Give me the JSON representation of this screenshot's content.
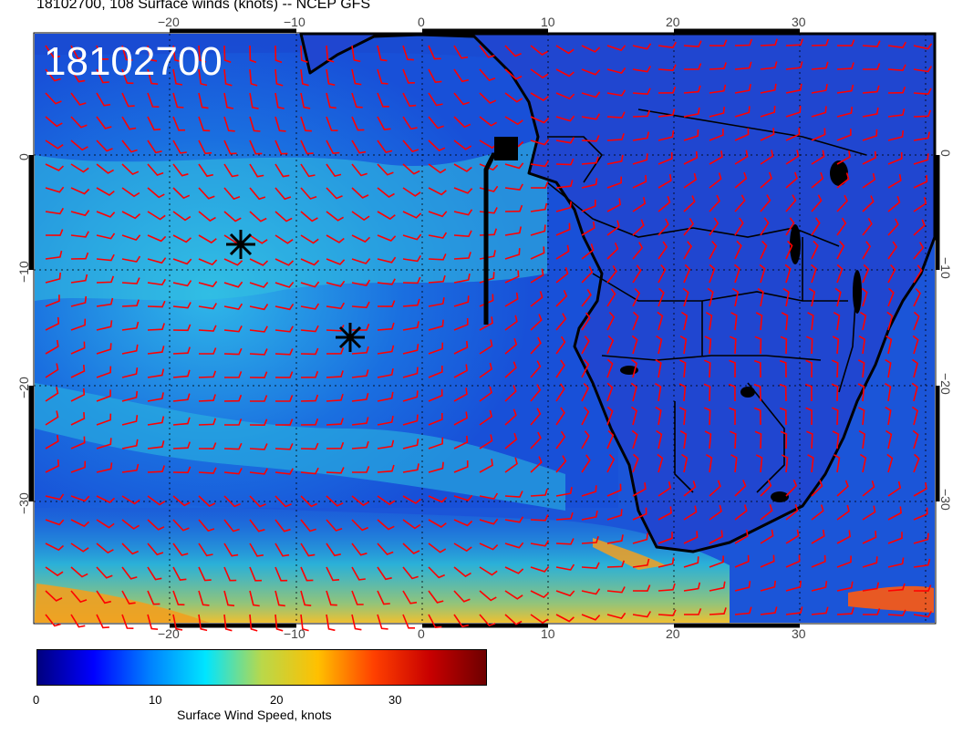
{
  "title": "18102700, 108 Surface winds (knots) -- NCEP GFS",
  "stamp": "18102700",
  "map": {
    "projection": "cylindrical",
    "lon_range": [
      -31,
      41
    ],
    "lat_range": [
      -40,
      12
    ],
    "lon_ticks": [
      "−20",
      "−10",
      "0",
      "10",
      "20",
      "30"
    ],
    "lat_ticks": [
      "0",
      "−10",
      "−20",
      "−30"
    ],
    "gridlines": "dotted",
    "wind_barb_color": "#ff0000",
    "markers": [
      {
        "type": "asterisk",
        "lon": -14.5,
        "lat": -8
      },
      {
        "type": "asterisk",
        "lon": -6,
        "lat": -16
      }
    ],
    "track": {
      "type": "line-with-box",
      "color": "#000000"
    }
  },
  "colorbar": {
    "label": "Surface Wind Speed, knots",
    "ticks": [
      "0",
      "10",
      "20",
      "30"
    ],
    "range": [
      0,
      38
    ],
    "colors": [
      "#00007f",
      "#0000ff",
      "#0080ff",
      "#00e5ff",
      "#b9d84a",
      "#ffc000",
      "#ff4000",
      "#c80000",
      "#6e0000"
    ]
  }
}
